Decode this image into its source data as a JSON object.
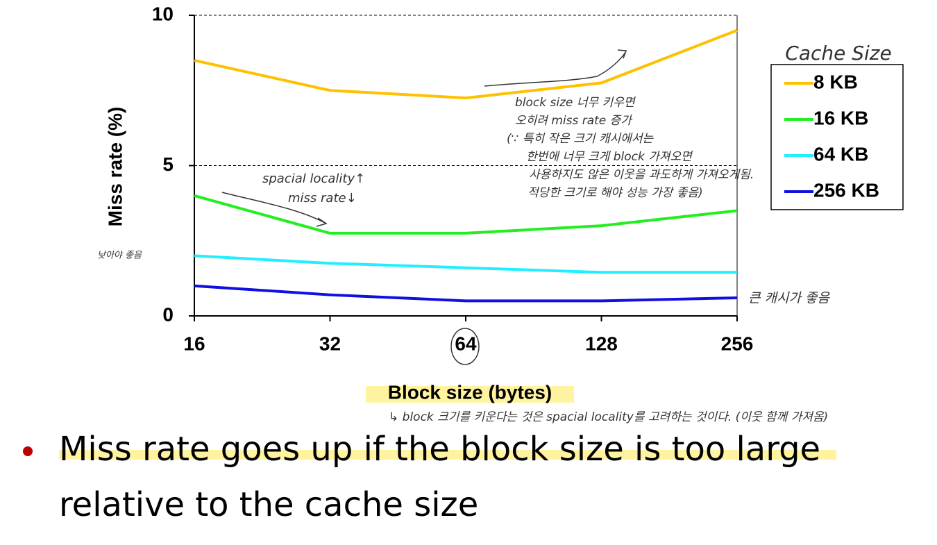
{
  "chart_data": {
    "type": "line",
    "y_label": "Miss rate (%)",
    "x_label": "Block size (bytes)",
    "categories": [
      "16",
      "32",
      "64",
      "128",
      "256"
    ],
    "series": [
      {
        "name": "8 KB",
        "color": "#ffc000",
        "values": [
          8.5,
          7.5,
          7.25,
          7.75,
          9.5
        ]
      },
      {
        "name": "16 KB",
        "color": "#22ee22",
        "values": [
          4.0,
          2.75,
          2.75,
          3.0,
          3.5
        ]
      },
      {
        "name": "64 KB",
        "color": "#22eeff",
        "values": [
          2.0,
          1.75,
          1.6,
          1.45,
          1.45
        ]
      },
      {
        "name": "256 KB",
        "color": "#1010e0",
        "values": [
          1.0,
          0.7,
          0.5,
          0.5,
          0.6
        ]
      }
    ],
    "ylim": [
      0,
      10
    ],
    "yticks": [
      0,
      5,
      10
    ],
    "grid": true,
    "legend_title": "Cache Size",
    "annotations": {
      "large_block": [
        "block size 너무 키우면",
        "오히려 miss rate 증가",
        "(∵ 특히 작은 크기 캐시에서는",
        "한번에 너무 크게 block 가져오면",
        "사용하지도 않은 이웃을 과도하게 가져오게됨.",
        "적당한 크기로 해야 성능 가장 좋음)"
      ],
      "locality": [
        "spacial locality↑",
        "miss rate↓"
      ],
      "low_good": "낮아야 좋음",
      "big_cache": "큰 캐시가 좋음",
      "block_note": "↳ block 크기를 키운다는 것은 spacial locality를 고려하는 것이다. (이웃 함께 가져옴)"
    }
  },
  "bullet": [
    "Miss rate goes up if the block size is too large",
    "relative to the cache size"
  ]
}
